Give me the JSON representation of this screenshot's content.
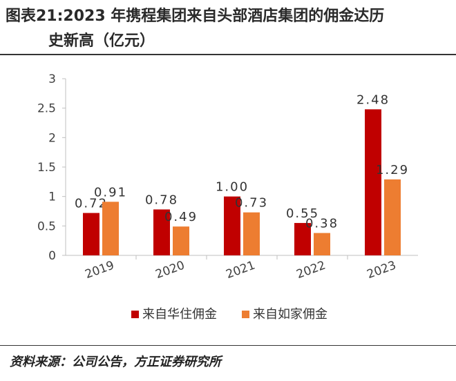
{
  "title_line1": "图表21:2023 年携程集团来自头部酒店集团的佣金达历",
  "title_line2": "史新高（亿元）",
  "source": "资料来源：公司公告，方正证券研究所",
  "colors": {
    "series1": "#c00000",
    "series2": "#ed7d31",
    "axis": "#bfbfbf",
    "text": "#404040"
  },
  "chart_data": {
    "type": "bar",
    "categories": [
      "2019",
      "2020",
      "2021",
      "2022",
      "2023"
    ],
    "series": [
      {
        "name": "来自华住佣金",
        "values": [
          0.72,
          0.78,
          1.0,
          0.55,
          2.48
        ],
        "labels": [
          "0.72",
          "0.78",
          "1.00",
          "0.55",
          "2.48"
        ]
      },
      {
        "name": "来自如家佣金",
        "values": [
          0.91,
          0.49,
          0.73,
          0.38,
          1.29
        ],
        "labels": [
          "0.91",
          "0.49",
          "0.73",
          "0.38",
          "1.29"
        ]
      }
    ],
    "yticks": [
      "0",
      "0.5",
      "1",
      "1.5",
      "2",
      "2.5",
      "3"
    ],
    "ylim": [
      0,
      3
    ],
    "legend_position": "bottom",
    "grid": false
  }
}
